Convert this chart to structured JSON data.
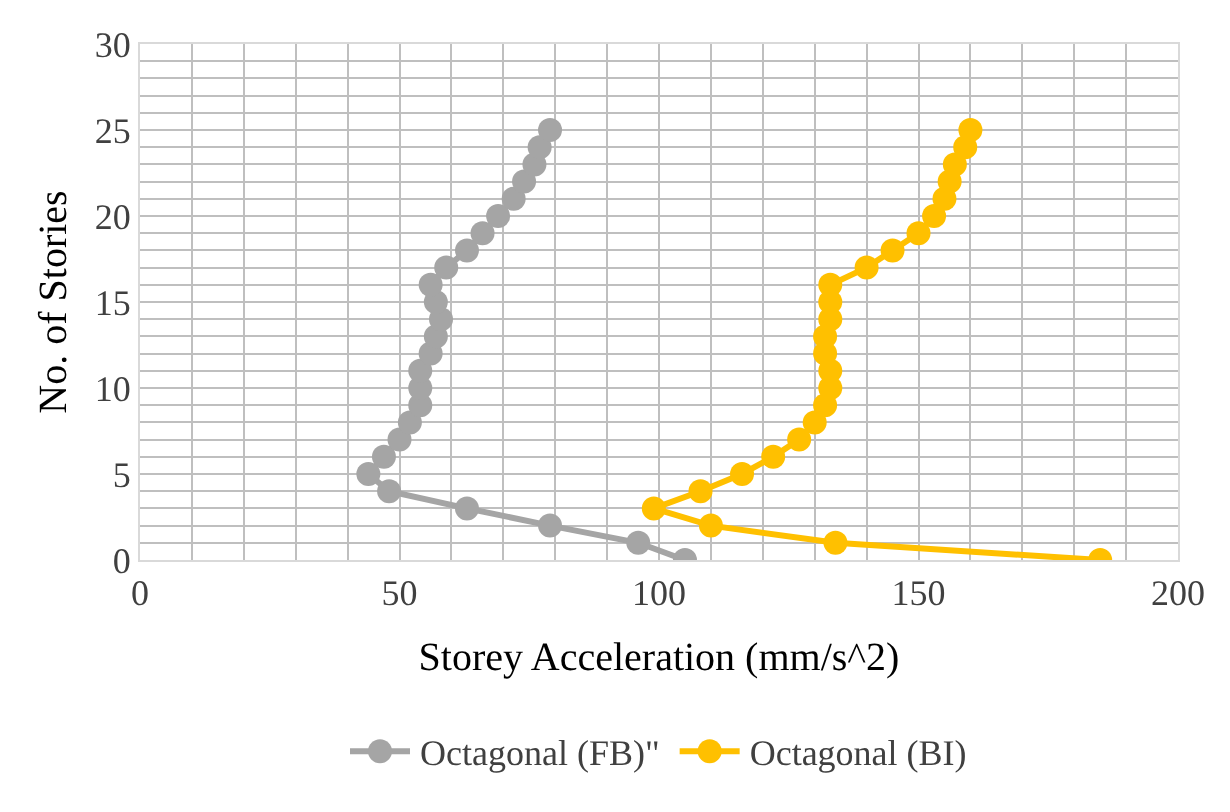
{
  "chart_data": {
    "type": "line",
    "xlabel": "Storey Acceleration (mm/s^2)",
    "ylabel": "No. of Stories",
    "xlim": [
      0,
      200
    ],
    "ylim": [
      0,
      30
    ],
    "xticks": [
      0,
      {
        "value": 10,
        "label": null
      },
      {
        "value": 20,
        "label": null
      },
      {
        "value": 30,
        "label": null
      },
      {
        "value": 40,
        "label": null
      },
      50,
      {
        "value": 60,
        "label": null
      },
      {
        "value": 70,
        "label": null
      },
      {
        "value": 80,
        "label": null
      },
      {
        "value": 90,
        "label": null
      },
      100,
      {
        "value": 110,
        "label": null
      },
      {
        "value": 120,
        "label": null
      },
      {
        "value": 130,
        "label": null
      },
      {
        "value": 140,
        "label": null
      },
      150,
      {
        "value": 160,
        "label": null
      },
      {
        "value": 170,
        "label": null
      },
      {
        "value": 180,
        "label": null
      },
      {
        "value": 190,
        "label": null
      },
      200
    ],
    "yticks": [
      0,
      {
        "value": 1,
        "label": null
      },
      {
        "value": 2,
        "label": null
      },
      {
        "value": 3,
        "label": null
      },
      {
        "value": 4,
        "label": null
      },
      5,
      {
        "value": 6,
        "label": null
      },
      {
        "value": 7,
        "label": null
      },
      {
        "value": 8,
        "label": null
      },
      {
        "value": 9,
        "label": null
      },
      10,
      {
        "value": 11,
        "label": null
      },
      {
        "value": 12,
        "label": null
      },
      {
        "value": 13,
        "label": null
      },
      {
        "value": 14,
        "label": null
      },
      15,
      {
        "value": 16,
        "label": null
      },
      {
        "value": 17,
        "label": null
      },
      {
        "value": 18,
        "label": null
      },
      {
        "value": 19,
        "label": null
      },
      20,
      {
        "value": 21,
        "label": null
      },
      {
        "value": 22,
        "label": null
      },
      {
        "value": 23,
        "label": null
      },
      {
        "value": 24,
        "label": null
      },
      25,
      {
        "value": 26,
        "label": null
      },
      {
        "value": 27,
        "label": null
      },
      {
        "value": 28,
        "label": null
      },
      {
        "value": 29,
        "label": null
      },
      30
    ],
    "grid": true,
    "legend": "bottom",
    "marker": "circle",
    "line_style": "solid",
    "series": [
      {
        "name": "Octagonal (FB)\"",
        "color": "#a5a5a5",
        "x": [
          105,
          96,
          79,
          63,
          48,
          44,
          47,
          50,
          52,
          54,
          54,
          54,
          56,
          57,
          58,
          57,
          56,
          59,
          63,
          66,
          69,
          72,
          74,
          76,
          77,
          79
        ],
        "values": [
          0,
          1,
          2,
          3,
          4,
          5,
          6,
          7,
          8,
          9,
          10,
          11,
          12,
          13,
          14,
          15,
          16,
          17,
          18,
          19,
          20,
          21,
          22,
          23,
          24,
          25
        ]
      },
      {
        "name": "Octagonal (BI)",
        "color": "#ffc000",
        "x": [
          185,
          134,
          110,
          99,
          108,
          116,
          122,
          127,
          130,
          132,
          133,
          133,
          132,
          132,
          133,
          133,
          133,
          140,
          145,
          150,
          153,
          155,
          156,
          157,
          159,
          160
        ],
        "values": [
          0,
          1,
          2,
          3,
          4,
          5,
          6,
          7,
          8,
          9,
          10,
          11,
          12,
          13,
          14,
          15,
          16,
          17,
          18,
          19,
          20,
          21,
          22,
          23,
          24,
          25
        ]
      }
    ]
  }
}
